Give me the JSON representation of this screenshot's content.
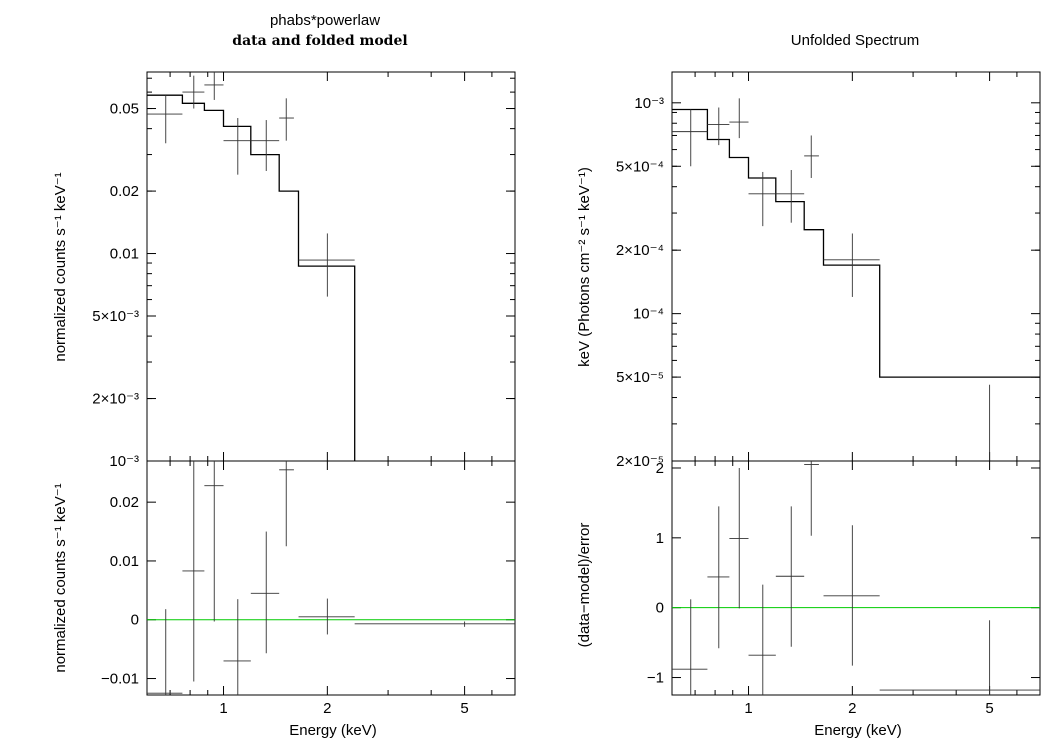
{
  "chart_data": [
    {
      "panel": "left-top",
      "type": "line",
      "title": "phabs*powerlaw",
      "subtitle": "data and folded model",
      "xlabel": "",
      "ylabel": "normalized counts s⁻¹ keV⁻¹",
      "xscale": "log",
      "yscale": "log",
      "xlim": [
        0.6,
        7.0
      ],
      "ylim": [
        0.001,
        0.075
      ],
      "y_ticks": [
        {
          "value": 0.05,
          "label": "0.05"
        },
        {
          "value": 0.02,
          "label": "0.02"
        },
        {
          "value": 0.01,
          "label": "0.01"
        },
        {
          "value": 0.005,
          "label": "5×10⁻³"
        },
        {
          "value": 0.002,
          "label": "2×10⁻³"
        },
        {
          "value": 0.001,
          "label": "10⁻³"
        }
      ],
      "data_points": [
        {
          "x": 0.68,
          "xlo": 0.6,
          "xhi": 0.76,
          "y": 0.047,
          "ylo": 0.034,
          "yhi": 0.058
        },
        {
          "x": 0.82,
          "xlo": 0.76,
          "xhi": 0.88,
          "y": 0.06,
          "ylo": 0.05,
          "yhi": 0.072
        },
        {
          "x": 0.94,
          "xlo": 0.88,
          "xhi": 1.0,
          "y": 0.065,
          "ylo": 0.055,
          "yhi": 0.078
        },
        {
          "x": 1.1,
          "xlo": 1.0,
          "xhi": 1.2,
          "y": 0.035,
          "ylo": 0.024,
          "yhi": 0.045
        },
        {
          "x": 1.33,
          "xlo": 1.2,
          "xhi": 1.45,
          "y": 0.035,
          "ylo": 0.025,
          "yhi": 0.044
        },
        {
          "x": 1.52,
          "xlo": 1.45,
          "xhi": 1.6,
          "y": 0.045,
          "ylo": 0.035,
          "yhi": 0.056
        },
        {
          "x": 2.0,
          "xlo": 1.65,
          "xhi": 2.4,
          "y": 0.0093,
          "ylo": 0.0062,
          "yhi": 0.0125
        }
      ],
      "model_steps": [
        {
          "xlo": 0.6,
          "xhi": 0.76,
          "y": 0.058
        },
        {
          "xlo": 0.76,
          "xhi": 0.88,
          "y": 0.053
        },
        {
          "xlo": 0.88,
          "xhi": 1.0,
          "y": 0.049
        },
        {
          "xlo": 1.0,
          "xhi": 1.2,
          "y": 0.041
        },
        {
          "xlo": 1.2,
          "xhi": 1.45,
          "y": 0.03
        },
        {
          "xlo": 1.45,
          "xhi": 1.65,
          "y": 0.02
        },
        {
          "xlo": 1.65,
          "xhi": 2.4,
          "y": 0.0087
        }
      ]
    },
    {
      "panel": "left-bottom",
      "type": "scatter",
      "xlabel": "Energy (keV)",
      "ylabel": "normalized counts s⁻¹ keV⁻¹",
      "xscale": "log",
      "yscale": "linear",
      "xlim": [
        0.6,
        7.0
      ],
      "ylim": [
        -0.0128,
        0.027
      ],
      "x_ticks": [
        {
          "value": 1,
          "label": "1"
        },
        {
          "value": 2,
          "label": "2"
        },
        {
          "value": 5,
          "label": "5"
        }
      ],
      "y_ticks": [
        {
          "value": 0.02,
          "label": "0.02"
        },
        {
          "value": 0.01,
          "label": "0.01"
        },
        {
          "value": 0,
          "label": "0"
        },
        {
          "value": -0.01,
          "label": "−0.01"
        }
      ],
      "zero_line": 0,
      "data_points": [
        {
          "x": 0.68,
          "xlo": 0.6,
          "xhi": 0.76,
          "y": -0.0125,
          "ylo": -0.015,
          "yhi": 0.0018
        },
        {
          "x": 0.82,
          "xlo": 0.76,
          "xhi": 0.88,
          "y": 0.0083,
          "ylo": -0.0105,
          "yhi": 0.0285
        },
        {
          "x": 0.94,
          "xlo": 0.88,
          "xhi": 1.0,
          "y": 0.0228,
          "ylo": -0.0003,
          "yhi": 0.029
        },
        {
          "x": 1.1,
          "xlo": 1.0,
          "xhi": 1.2,
          "y": -0.007,
          "ylo": -0.0132,
          "yhi": 0.0035
        },
        {
          "x": 1.33,
          "xlo": 1.2,
          "xhi": 1.45,
          "y": 0.0045,
          "ylo": -0.0057,
          "yhi": 0.015
        },
        {
          "x": 1.52,
          "xlo": 1.45,
          "xhi": 1.6,
          "y": 0.0255,
          "ylo": 0.0125,
          "yhi": 0.028
        },
        {
          "x": 2.0,
          "xlo": 1.65,
          "xhi": 2.4,
          "y": 0.0005,
          "ylo": -0.0025,
          "yhi": 0.0036
        },
        {
          "x": 5.0,
          "xlo": 2.4,
          "xhi": 7.0,
          "y": -0.0007,
          "ylo": -0.0012,
          "yhi": -0.0003
        }
      ]
    },
    {
      "panel": "right-top",
      "type": "line",
      "title": "Unfolded Spectrum",
      "xlabel": "",
      "ylabel": "keV (Photons cm⁻² s⁻¹ keV⁻¹)",
      "xscale": "log",
      "yscale": "log",
      "xlim": [
        0.6,
        7.0
      ],
      "ylim": [
        2e-05,
        0.0014
      ],
      "y_ticks": [
        {
          "value": 0.001,
          "label": "10⁻³"
        },
        {
          "value": 0.0005,
          "label": "5×10⁻⁴"
        },
        {
          "value": 0.0002,
          "label": "2×10⁻⁴"
        },
        {
          "value": 0.0001,
          "label": "10⁻⁴"
        },
        {
          "value": 5e-05,
          "label": "5×10⁻⁵"
        },
        {
          "value": 2e-05,
          "label": "2×10⁻⁵"
        }
      ],
      "data_points": [
        {
          "x": 0.68,
          "xlo": 0.6,
          "xhi": 0.76,
          "y": 0.00073,
          "ylo": 0.0005,
          "yhi": 0.00093
        },
        {
          "x": 0.82,
          "xlo": 0.76,
          "xhi": 0.88,
          "y": 0.00079,
          "ylo": 0.00063,
          "yhi": 0.00095
        },
        {
          "x": 0.94,
          "xlo": 0.88,
          "xhi": 1.0,
          "y": 0.00081,
          "ylo": 0.00068,
          "yhi": 0.00105
        },
        {
          "x": 1.1,
          "xlo": 1.0,
          "xhi": 1.2,
          "y": 0.00037,
          "ylo": 0.00026,
          "yhi": 0.00047
        },
        {
          "x": 1.33,
          "xlo": 1.2,
          "xhi": 1.45,
          "y": 0.00037,
          "ylo": 0.00027,
          "yhi": 0.00048
        },
        {
          "x": 1.52,
          "xlo": 1.45,
          "xhi": 1.6,
          "y": 0.00056,
          "ylo": 0.00044,
          "yhi": 0.0007
        },
        {
          "x": 2.0,
          "xlo": 1.65,
          "xhi": 2.4,
          "y": 0.00018,
          "ylo": 0.00012,
          "yhi": 0.00024
        },
        {
          "x": 5.0,
          "xlo": 2.4,
          "xhi": 7.0,
          "y": 1.9e-05,
          "ylo": 1e-05,
          "yhi": 4.6e-05
        }
      ],
      "model_steps": [
        {
          "xlo": 0.6,
          "xhi": 0.76,
          "y": 0.00093
        },
        {
          "xlo": 0.76,
          "xhi": 0.88,
          "y": 0.00067
        },
        {
          "xlo": 0.88,
          "xhi": 1.0,
          "y": 0.00055
        },
        {
          "xlo": 1.0,
          "xhi": 1.2,
          "y": 0.00044
        },
        {
          "xlo": 1.2,
          "xhi": 1.45,
          "y": 0.00034
        },
        {
          "xlo": 1.45,
          "xhi": 1.65,
          "y": 0.00025
        },
        {
          "xlo": 1.65,
          "xhi": 2.4,
          "y": 0.00017
        },
        {
          "xlo": 2.4,
          "xhi": 7.0,
          "y": 5e-05
        }
      ]
    },
    {
      "panel": "right-bottom",
      "type": "scatter",
      "xlabel": "Energy (keV)",
      "ylabel": "(data−model)/error",
      "xscale": "log",
      "yscale": "linear",
      "xlim": [
        0.6,
        7.0
      ],
      "ylim": [
        -1.25,
        2.1
      ],
      "x_ticks": [
        {
          "value": 1,
          "label": "1"
        },
        {
          "value": 2,
          "label": "2"
        },
        {
          "value": 5,
          "label": "5"
        }
      ],
      "y_ticks": [
        {
          "value": 2,
          "label": "2"
        },
        {
          "value": 1,
          "label": "1"
        },
        {
          "value": 0,
          "label": "0"
        },
        {
          "value": -1,
          "label": "−1"
        }
      ],
      "zero_line": 0,
      "data_points": [
        {
          "x": 0.68,
          "xlo": 0.6,
          "xhi": 0.76,
          "y": -0.88,
          "ylo": -1.3,
          "yhi": 0.12
        },
        {
          "x": 0.82,
          "xlo": 0.76,
          "xhi": 0.88,
          "y": 0.44,
          "ylo": -0.58,
          "yhi": 1.45
        },
        {
          "x": 0.94,
          "xlo": 0.88,
          "xhi": 1.0,
          "y": 0.99,
          "ylo": -0.01,
          "yhi": 2.0
        },
        {
          "x": 1.1,
          "xlo": 1.0,
          "xhi": 1.2,
          "y": -0.68,
          "ylo": -1.3,
          "yhi": 0.33
        },
        {
          "x": 1.33,
          "xlo": 1.2,
          "xhi": 1.45,
          "y": 0.45,
          "ylo": -0.56,
          "yhi": 1.45
        },
        {
          "x": 1.52,
          "xlo": 1.45,
          "xhi": 1.6,
          "y": 2.05,
          "ylo": 1.03,
          "yhi": 2.1
        },
        {
          "x": 2.0,
          "xlo": 1.65,
          "xhi": 2.4,
          "y": 0.17,
          "ylo": -0.83,
          "yhi": 1.18
        },
        {
          "x": 5.0,
          "xlo": 2.4,
          "xhi": 7.0,
          "y": -1.18,
          "ylo": -1.3,
          "yhi": -0.18
        }
      ]
    }
  ]
}
